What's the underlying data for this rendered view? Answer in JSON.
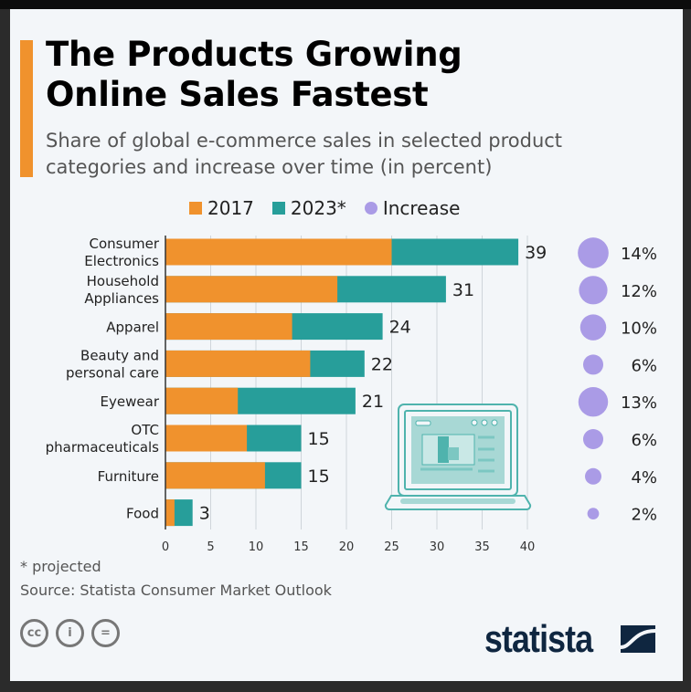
{
  "title_line1": "The Products Growing",
  "title_line2": "Online Sales Fastest",
  "subtitle_line1": "Share of global e-commerce sales in selected product",
  "subtitle_line2": "categories and increase over time (in percent)",
  "legend": [
    {
      "label": "2017",
      "color": "#f0922d"
    },
    {
      "label": "2023*",
      "color": "#279e9a"
    },
    {
      "label": "Increase",
      "color": "#aa9be6"
    }
  ],
  "chart_data": {
    "type": "bar",
    "orientation": "horizontal",
    "stacked_overlay": true,
    "categories": [
      [
        "Consumer",
        "Electronics"
      ],
      [
        "Household",
        "Appliances"
      ],
      [
        "Apparel"
      ],
      [
        "Beauty and",
        "personal care"
      ],
      [
        "Eyewear"
      ],
      [
        "OTC",
        "pharmaceuticals"
      ],
      [
        "Furniture"
      ],
      [
        "Food"
      ]
    ],
    "series": [
      {
        "name": "2017",
        "values": [
          25,
          19,
          14,
          16,
          8,
          9,
          11,
          1
        ],
        "color": "#f0922d"
      },
      {
        "name": "2023*",
        "values": [
          39,
          31,
          24,
          22,
          21,
          15,
          15,
          3
        ],
        "color": "#279e9a"
      }
    ],
    "data_labels": [
      "39",
      "31",
      "24",
      "22",
      "21",
      "15",
      "15",
      "3"
    ],
    "increase": {
      "name": "Increase",
      "values": [
        14,
        12,
        10,
        6,
        13,
        6,
        4,
        2
      ],
      "labels": [
        "14%",
        "12%",
        "10%",
        "6%",
        "13%",
        "6%",
        "4%",
        "2%"
      ],
      "color": "#aa9be6"
    },
    "xlim": [
      0,
      40
    ],
    "xticks": [
      "0",
      "5",
      "10",
      "15",
      "20",
      "25",
      "30",
      "35",
      "40"
    ],
    "grid": true,
    "legend_position": "top"
  },
  "footnote": "* projected",
  "source": "Source: Statista Consumer Market Outlook",
  "license_icons": [
    "cc-icon",
    "attribution-icon",
    "no-derivatives-icon"
  ],
  "brand": "statista"
}
